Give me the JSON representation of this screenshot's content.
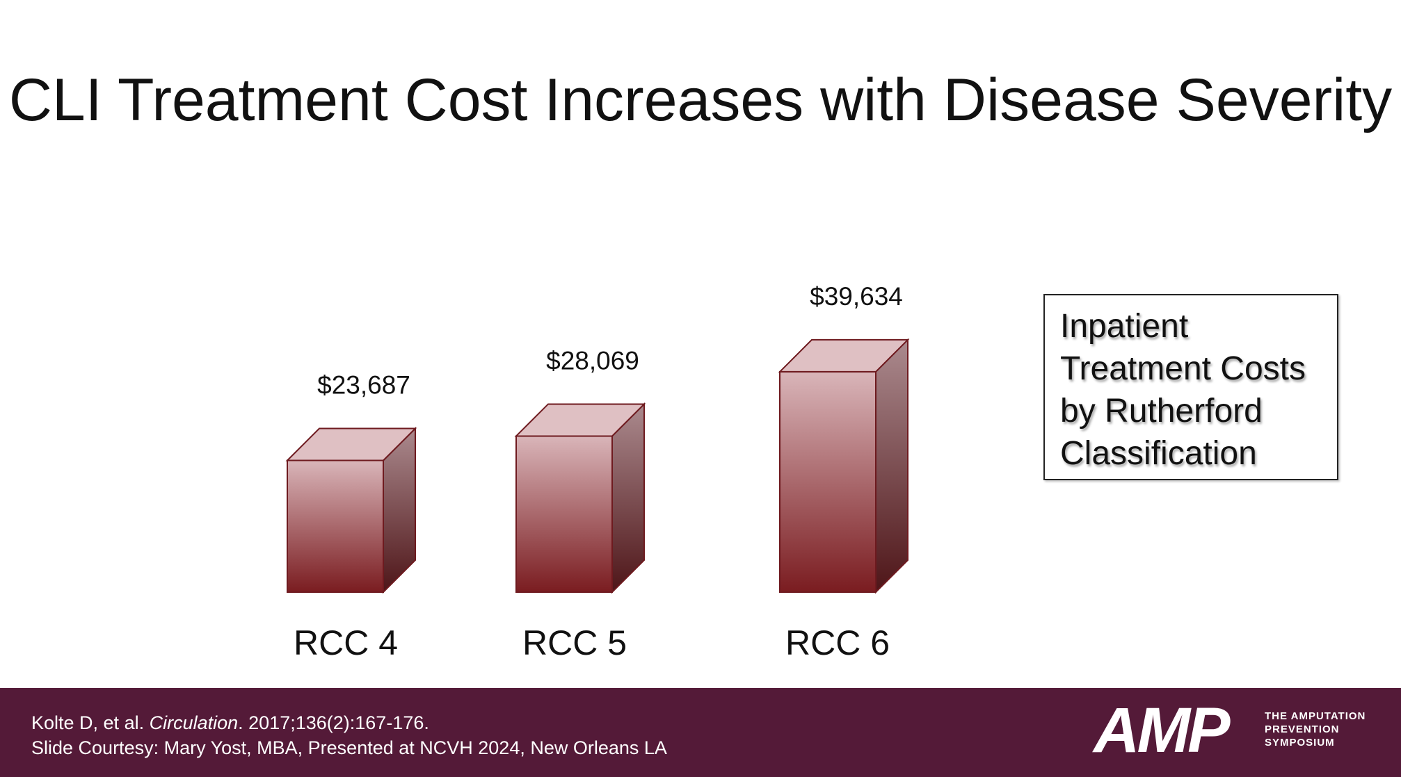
{
  "slide": {
    "title": "CLI Treatment Cost Increases with Disease Severity"
  },
  "chart_data": {
    "type": "bar",
    "title": "CLI Treatment Cost Increases with Disease Severity",
    "categories": [
      "RCC 4",
      "RCC 5",
      "RCC 6"
    ],
    "values": [
      23687,
      28069,
      39634
    ],
    "value_labels": [
      "$23,687",
      "$28,069",
      "$39,634"
    ],
    "legend": "Inpatient Treatment Costs by Rutherford Classification",
    "xlabel": "",
    "ylabel": "",
    "ylim": [
      0,
      40000
    ],
    "grid": false,
    "style": "3d-column",
    "colors": {
      "bar_top": "#d9b5b9",
      "bar_bottom": "#7a1c20",
      "side_top": "#ab8a8e",
      "side_bottom": "#4e1518",
      "cap": "#dfc0c3",
      "outline": "#6e1a1f"
    }
  },
  "legend_box": {
    "lines": [
      "Inpatient",
      "Treatment Costs",
      "by Rutherford",
      "Classification"
    ]
  },
  "footer": {
    "citation_author": "Kolte D, et al. ",
    "citation_journal": "Circulation",
    "citation_rest": ". 2017;136(2):167-176.",
    "courtesy": "Slide Courtesy: Mary Yost, MBA,  Presented at NCVH  2024, New Orleans LA",
    "logo_text": "AMP",
    "logo_tagline": [
      "THE AMPUTATION",
      "PREVENTION",
      "SYMPOSIUM"
    ],
    "background_color": "#541a38"
  }
}
